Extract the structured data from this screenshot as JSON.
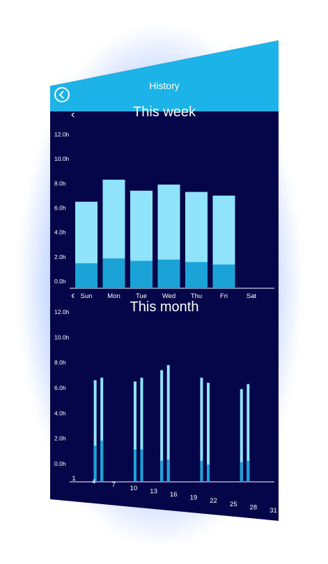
{
  "header": {
    "title": "History",
    "back_icon": "back-arrow-icon"
  },
  "colors": {
    "header": "#1bb3e8",
    "background": "#05064a",
    "bar_light": "#8fe3fb",
    "bar_dark": "#1ba3d8"
  },
  "chart_data": [
    {
      "type": "bar",
      "title": "This week",
      "categories": [
        "Sun",
        "Mon",
        "Tue",
        "Wed",
        "Thu",
        "Fri",
        "Sat"
      ],
      "series": [
        {
          "values": [
            1.7,
            2.1,
            1.9,
            2.0,
            1.8,
            1.6,
            0
          ]
        },
        {
          "values": [
            6.5,
            8.3,
            7.4,
            7.9,
            7.3,
            7.0,
            0
          ]
        }
      ],
      "yticks": [
        "0.0h",
        "2.0h",
        "4.0h",
        "6.0h",
        "8.0h",
        "10.0h",
        "12.0h"
      ],
      "ylim": [
        0,
        12
      ]
    },
    {
      "type": "bar",
      "title": "This month",
      "x": [
        4,
        5,
        10,
        11,
        14,
        15,
        20,
        21,
        26,
        27
      ],
      "series": [
        {
          "values": [
            2.2,
            2.6,
            1.9,
            1.9,
            1.0,
            1.1,
            1.0,
            0.7,
            0.9,
            1.0
          ]
        },
        {
          "values": [
            6.6,
            6.8,
            6.5,
            6.8,
            7.4,
            7.8,
            6.8,
            6.4,
            5.9,
            6.3
          ]
        }
      ],
      "xticks": [
        "1",
        "4",
        "7",
        "10",
        "13",
        "16",
        "19",
        "22",
        "25",
        "28",
        "31"
      ],
      "yticks": [
        "0.0h",
        "2.0h",
        "4.0h",
        "6.0h",
        "8.0h",
        "10.0h",
        "12.0h"
      ],
      "ylim": [
        0,
        12
      ]
    }
  ]
}
